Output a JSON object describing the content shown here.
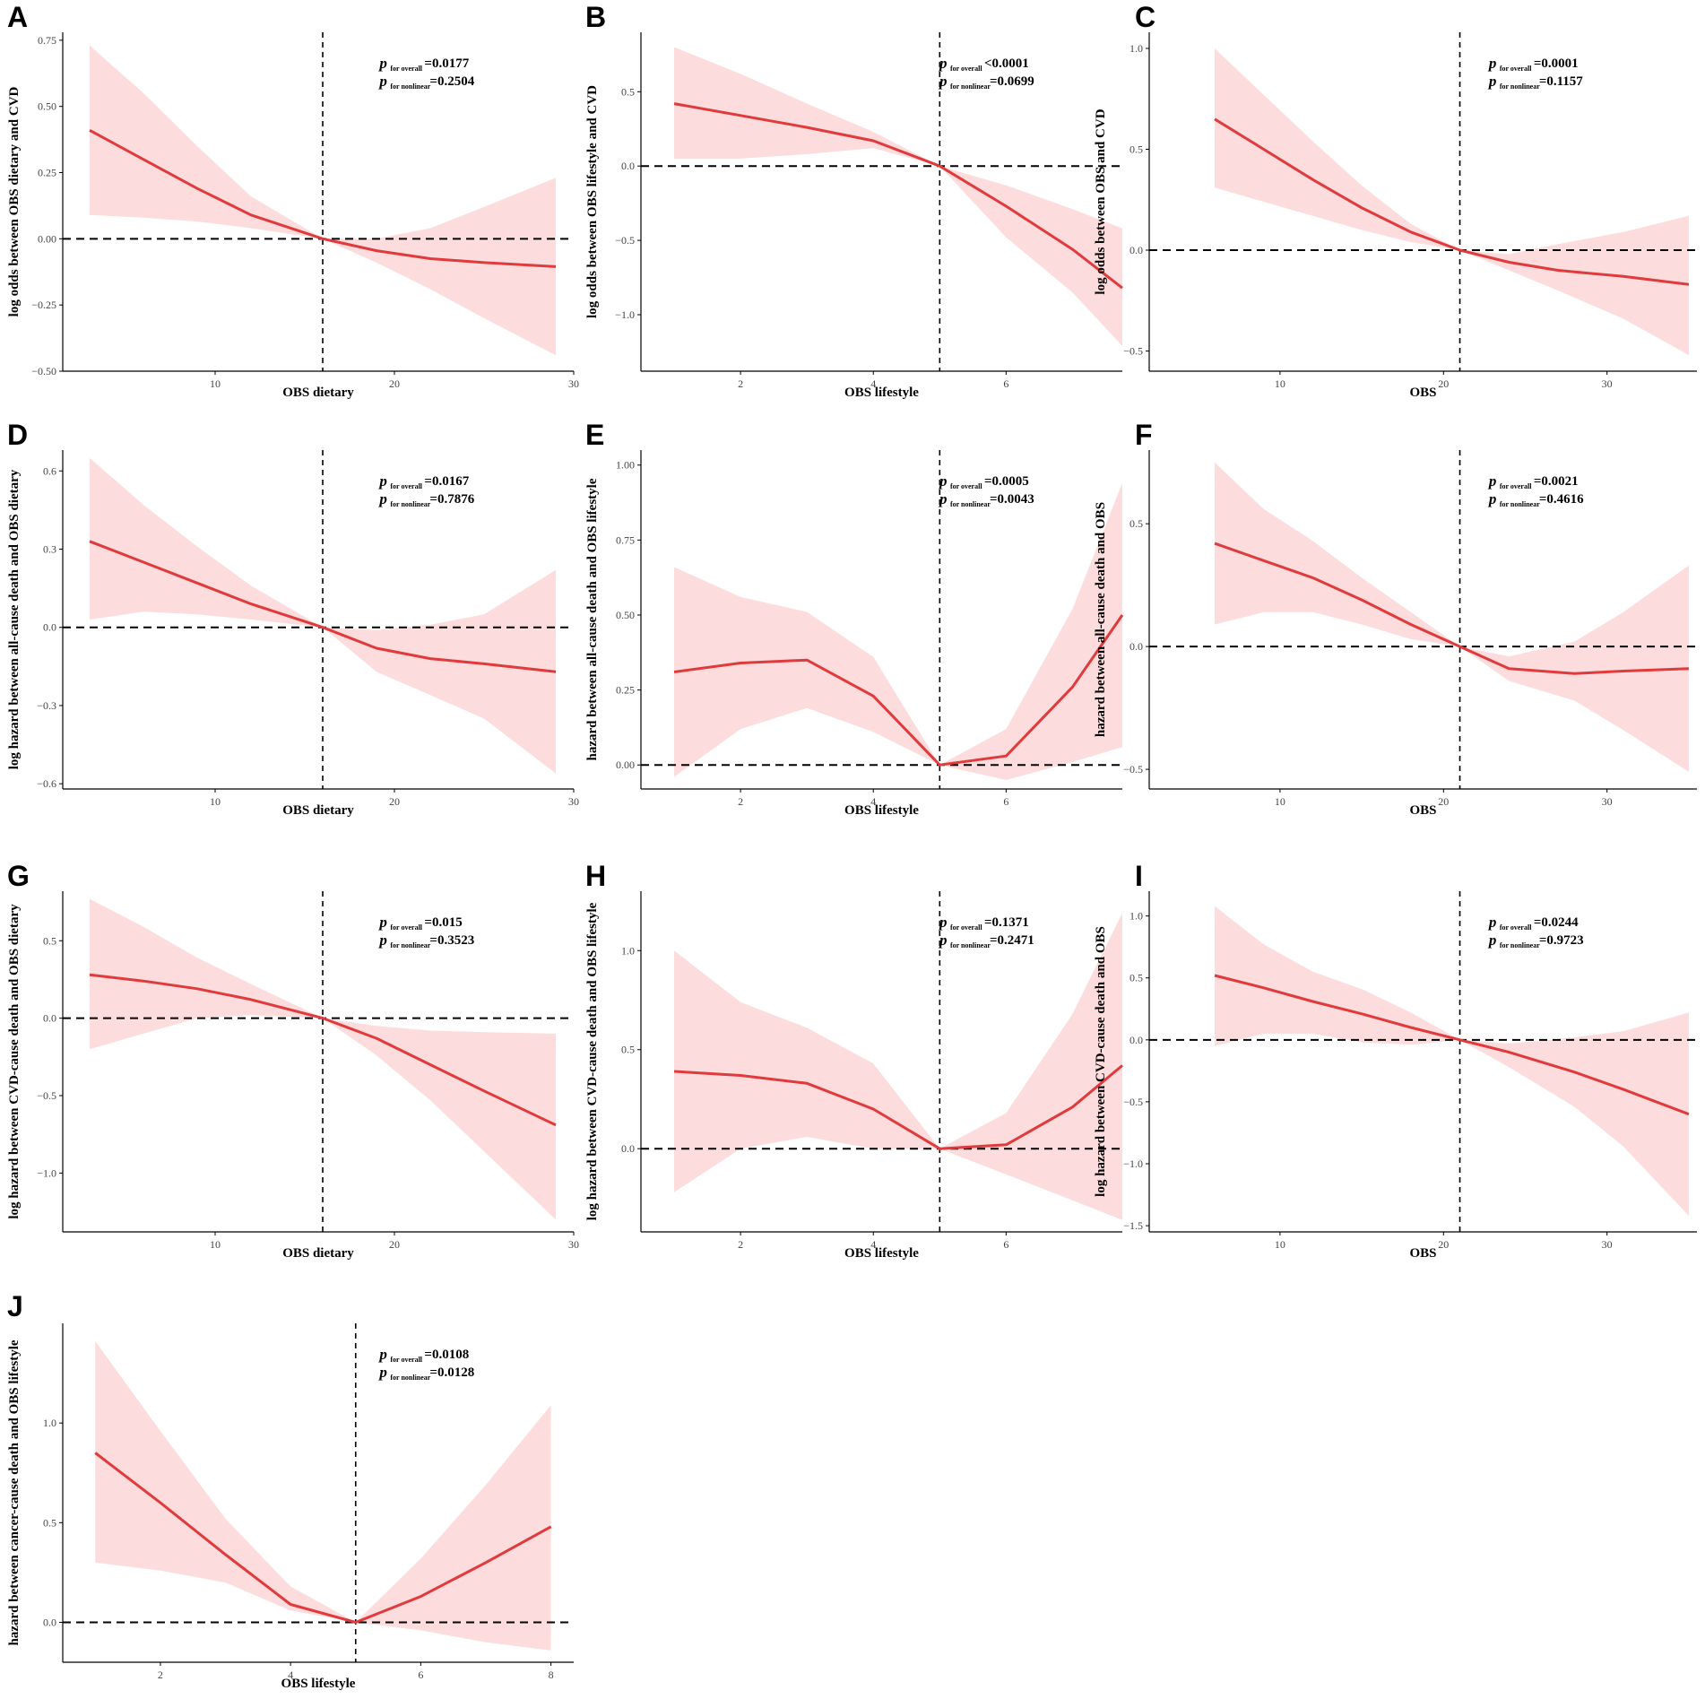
{
  "chart_data": [
    {
      "type": "line",
      "panel": "A",
      "xlabel": "OBS dietary",
      "ylabel": "log odds between OBS dietary and CVD",
      "xlim": [
        1.5,
        30
      ],
      "ylim": [
        -0.5,
        0.78
      ],
      "xticks": [
        10,
        20,
        30
      ],
      "yticks": [
        -0.5,
        -0.25,
        0.0,
        0.25,
        0.5,
        0.75
      ],
      "ytick_labels": [
        "−0.50",
        "−0.25",
        "0.00",
        "0.25",
        "0.50",
        "0.75"
      ],
      "ref_x": 16,
      "ref_y": 0,
      "x": [
        3,
        6,
        9,
        12,
        16,
        19,
        22,
        25,
        29
      ],
      "y": [
        0.41,
        0.3,
        0.19,
        0.09,
        0.0,
        -0.045,
        -0.075,
        -0.09,
        -0.105
      ],
      "ci_low": [
        0.09,
        0.08,
        0.065,
        0.04,
        0.0,
        -0.09,
        -0.19,
        -0.3,
        -0.44
      ],
      "ci_high": [
        0.73,
        0.55,
        0.35,
        0.16,
        0.0,
        0.0,
        0.04,
        0.12,
        0.23
      ],
      "p_overall_label": "for overall",
      "p_overall": "=0.0177",
      "p_nonlinear_label": "for nonlinear",
      "p_nonlinear": "=0.2504"
    },
    {
      "type": "line",
      "panel": "B",
      "xlabel": "OBS lifestyle",
      "ylabel": "log odds between OBS lifestyle and CVD",
      "xlim": [
        0.5,
        7.75
      ],
      "ylim": [
        -1.38,
        0.9
      ],
      "xticks": [
        2,
        4,
        6
      ],
      "yticks": [
        -1.0,
        -0.5,
        0.0,
        0.5
      ],
      "ytick_labels": [
        "−1.0",
        "−0.5",
        "0.0",
        "0.5"
      ],
      "ref_x": 5,
      "ref_y": 0,
      "x": [
        1,
        2,
        3,
        4,
        5,
        6,
        7,
        7.75
      ],
      "y": [
        0.42,
        0.34,
        0.26,
        0.17,
        0.0,
        -0.27,
        -0.56,
        -0.82
      ],
      "ci_low": [
        0.05,
        0.05,
        0.08,
        0.12,
        0.0,
        -0.48,
        -0.85,
        -1.21
      ],
      "ci_high": [
        0.8,
        0.62,
        0.42,
        0.23,
        0.0,
        -0.13,
        -0.29,
        -0.42
      ],
      "p_overall_label": "for overall",
      "p_overall": "<0.0001",
      "p_nonlinear_label": "for nonlinear",
      "p_nonlinear": "=0.0699"
    },
    {
      "type": "line",
      "panel": "C",
      "xlabel": "OBS",
      "ylabel": "log odds between OBS and CVD",
      "xlim": [
        2,
        35.5
      ],
      "ylim": [
        -0.6,
        1.08
      ],
      "xticks": [
        10,
        20,
        30
      ],
      "yticks": [
        -0.5,
        0.0,
        0.5,
        1.0
      ],
      "ytick_labels": [
        "−0.5",
        "0.0",
        "0.5",
        "1.0"
      ],
      "ref_x": 21,
      "ref_y": 0,
      "x": [
        6,
        9,
        12,
        15,
        18,
        21,
        24,
        27,
        31,
        35
      ],
      "y": [
        0.65,
        0.5,
        0.35,
        0.21,
        0.09,
        0.0,
        -0.06,
        -0.1,
        -0.13,
        -0.17
      ],
      "ci_low": [
        0.31,
        0.24,
        0.17,
        0.1,
        0.04,
        0.0,
        -0.1,
        -0.2,
        -0.34,
        -0.52
      ],
      "ci_high": [
        1.0,
        0.77,
        0.54,
        0.32,
        0.13,
        0.0,
        -0.02,
        0.03,
        0.09,
        0.17
      ],
      "p_overall_label": "for overall",
      "p_overall": "=0.0001",
      "p_nonlinear_label": "for nonlinear",
      "p_nonlinear": "=0.1157"
    },
    {
      "type": "line",
      "panel": "D",
      "xlabel": "OBS dietary",
      "ylabel": "log hazard between all-cause death and OBS dietary",
      "xlim": [
        1.5,
        30
      ],
      "ylim": [
        -0.62,
        0.68
      ],
      "xticks": [
        10,
        20,
        30
      ],
      "yticks": [
        -0.6,
        -0.3,
        0.0,
        0.3,
        0.6
      ],
      "ytick_labels": [
        "−0.6",
        "−0.3",
        "0.0",
        "0.3",
        "0.6"
      ],
      "ref_x": 16,
      "ref_y": 0,
      "x": [
        3,
        6,
        9,
        12,
        16,
        19,
        22,
        25,
        29
      ],
      "y": [
        0.33,
        0.25,
        0.17,
        0.09,
        0.0,
        -0.08,
        -0.12,
        -0.14,
        -0.17
      ],
      "ci_low": [
        0.03,
        0.06,
        0.05,
        0.03,
        0.0,
        -0.17,
        -0.26,
        -0.35,
        -0.56
      ],
      "ci_high": [
        0.65,
        0.47,
        0.31,
        0.16,
        0.0,
        -0.01,
        0.01,
        0.05,
        0.22
      ],
      "p_overall_label": "for overall",
      "p_overall": "=0.0167",
      "p_nonlinear_label": "for nonlinear",
      "p_nonlinear": "=0.7876"
    },
    {
      "type": "line",
      "panel": "E",
      "xlabel": "OBS lifestyle",
      "ylabel": "hazard between all-cause death and OBS lifestyle",
      "xlim": [
        0.5,
        7.75
      ],
      "ylim": [
        -0.08,
        1.05
      ],
      "xticks": [
        2,
        4,
        6
      ],
      "yticks": [
        0.0,
        0.25,
        0.5,
        0.75,
        1.0
      ],
      "ytick_labels": [
        "0.00",
        "0.25",
        "0.50",
        "0.75",
        "1.00"
      ],
      "ref_x": 5,
      "ref_y": 0,
      "x": [
        1,
        2,
        3,
        4,
        5,
        6,
        7,
        7.75
      ],
      "y": [
        0.31,
        0.34,
        0.35,
        0.23,
        0.0,
        0.03,
        0.26,
        0.5
      ],
      "ci_low": [
        -0.04,
        0.12,
        0.19,
        0.11,
        0.0,
        -0.05,
        0.01,
        0.06
      ],
      "ci_high": [
        0.66,
        0.56,
        0.51,
        0.36,
        0.0,
        0.12,
        0.52,
        0.94
      ],
      "p_overall_label": "for overall",
      "p_overall": "=0.0005",
      "p_nonlinear_label": "for nonlinear",
      "p_nonlinear": "=0.0043"
    },
    {
      "type": "line",
      "panel": "F",
      "xlabel": "OBS",
      "ylabel": "hazard between all-cause death and OBS",
      "xlim": [
        2,
        35.5
      ],
      "ylim": [
        -0.58,
        0.8
      ],
      "xticks": [
        10,
        20,
        30
      ],
      "yticks": [
        -0.5,
        0.0,
        0.5
      ],
      "ytick_labels": [
        "−0.5",
        "0.0",
        "0.5"
      ],
      "ref_x": 21,
      "ref_y": 0,
      "x": [
        6,
        9,
        12,
        15,
        18,
        21,
        24,
        28,
        31,
        35
      ],
      "y": [
        0.42,
        0.35,
        0.28,
        0.19,
        0.09,
        0.0,
        -0.09,
        -0.11,
        -0.1,
        -0.09
      ],
      "ci_low": [
        0.09,
        0.14,
        0.14,
        0.09,
        0.03,
        0.0,
        -0.14,
        -0.22,
        -0.34,
        -0.51
      ],
      "ci_high": [
        0.75,
        0.56,
        0.43,
        0.28,
        0.14,
        0.0,
        -0.04,
        0.02,
        0.14,
        0.33
      ],
      "p_overall_label": "for overall",
      "p_overall": "=0.0021",
      "p_nonlinear_label": "for nonlinear",
      "p_nonlinear": "=0.4616"
    },
    {
      "type": "line",
      "panel": "G",
      "xlabel": "OBS dietary",
      "ylabel": "log hazard between CVD-cause death and OBS dietary",
      "xlim": [
        1.5,
        30
      ],
      "ylim": [
        -1.38,
        0.82
      ],
      "xticks": [
        10,
        20,
        30
      ],
      "yticks": [
        -1.0,
        -0.5,
        0.0,
        0.5
      ],
      "ytick_labels": [
        "−1.0",
        "−0.5",
        "0.0",
        "0.5"
      ],
      "ref_x": 16,
      "ref_y": 0,
      "x": [
        3,
        6,
        9,
        12,
        16,
        19,
        22,
        25,
        29
      ],
      "y": [
        0.28,
        0.24,
        0.19,
        0.12,
        0.0,
        -0.13,
        -0.3,
        -0.47,
        -0.69
      ],
      "ci_low": [
        -0.2,
        -0.1,
        0.0,
        0.02,
        0.0,
        -0.24,
        -0.53,
        -0.86,
        -1.3
      ],
      "ci_high": [
        0.77,
        0.59,
        0.39,
        0.22,
        0.0,
        -0.05,
        -0.08,
        -0.09,
        -0.1
      ],
      "p_overall_label": "for overall",
      "p_overall": "=0.015",
      "p_nonlinear_label": "for nonlinear",
      "p_nonlinear": "=0.3523"
    },
    {
      "type": "line",
      "panel": "H",
      "xlabel": "OBS lifestyle",
      "ylabel": "log hazard between CVD-cause death and OBS lifestyle",
      "xlim": [
        0.5,
        7.75
      ],
      "ylim": [
        -0.42,
        1.3
      ],
      "xticks": [
        2,
        4,
        6
      ],
      "yticks": [
        0.0,
        0.5,
        1.0
      ],
      "ytick_labels": [
        "0.0",
        "0.5",
        "1.0"
      ],
      "ref_x": 5,
      "ref_y": 0,
      "x": [
        1,
        2,
        3,
        4,
        5,
        6,
        7,
        7.75
      ],
      "y": [
        0.39,
        0.37,
        0.33,
        0.2,
        0.0,
        0.02,
        0.21,
        0.42
      ],
      "ci_low": [
        -0.22,
        0.0,
        0.06,
        0.0,
        0.0,
        -0.13,
        -0.26,
        -0.36
      ],
      "ci_high": [
        1.0,
        0.74,
        0.61,
        0.43,
        0.0,
        0.18,
        0.68,
        1.19
      ],
      "p_overall_label": "for overall",
      "p_overall": "=0.1371",
      "p_nonlinear_label": "for nonlinear",
      "p_nonlinear": "=0.2471"
    },
    {
      "type": "line",
      "panel": "I",
      "xlabel": "OBS",
      "ylabel": "log hazard between CVD-cause death and OBS",
      "xlim": [
        2,
        35.5
      ],
      "ylim": [
        -1.55,
        1.2
      ],
      "xticks": [
        10,
        20,
        30
      ],
      "yticks": [
        -1.5,
        -1.0,
        -0.5,
        0.0,
        0.5,
        1.0
      ],
      "ytick_labels": [
        "−1.5",
        "−1.0",
        "−0.5",
        "0.0",
        "0.5",
        "1.0"
      ],
      "ref_x": 21,
      "ref_y": 0,
      "x": [
        6,
        9,
        12,
        15,
        18,
        21,
        24,
        28,
        31,
        35
      ],
      "y": [
        0.52,
        0.42,
        0.31,
        0.21,
        0.1,
        0.0,
        -0.1,
        -0.26,
        -0.4,
        -0.6
      ],
      "ci_low": [
        -0.05,
        0.05,
        0.05,
        -0.02,
        -0.04,
        0.0,
        -0.22,
        -0.54,
        -0.86,
        -1.42
      ],
      "ci_high": [
        1.08,
        0.77,
        0.55,
        0.41,
        0.22,
        0.0,
        -0.03,
        0.02,
        0.07,
        0.22
      ],
      "p_overall_label": "for overall",
      "p_overall": "=0.0244",
      "p_nonlinear_label": "for nonlinear",
      "p_nonlinear": "=0.9723"
    },
    {
      "type": "line",
      "panel": "J",
      "xlabel": "OBS lifestyle",
      "ylabel": "hazard between cancer-cause death and OBS lifestyle",
      "xlim": [
        0.5,
        8.35
      ],
      "ylim": [
        -0.2,
        1.5
      ],
      "xticks": [
        2,
        4,
        6,
        8
      ],
      "yticks": [
        0.0,
        0.5,
        1.0
      ],
      "ytick_labels": [
        "0.0",
        "0.5",
        "1.0"
      ],
      "ref_x": 5,
      "ref_y": 0,
      "x": [
        1,
        2,
        3,
        4,
        5,
        6,
        7,
        8
      ],
      "y": [
        0.85,
        0.6,
        0.34,
        0.09,
        0.0,
        0.13,
        0.3,
        0.48
      ],
      "ci_low": [
        0.3,
        0.26,
        0.2,
        0.06,
        0.0,
        -0.04,
        -0.1,
        -0.14
      ],
      "ci_high": [
        1.41,
        0.96,
        0.52,
        0.18,
        0.0,
        0.32,
        0.69,
        1.09
      ],
      "p_overall_label": "for overall",
      "p_overall": "=0.0108",
      "p_nonlinear_label": "for nonlinear",
      "p_nonlinear": "=0.0128"
    }
  ],
  "colors": {
    "line": "#e03a3c",
    "band": "#fcdcdc",
    "axis": "#000000",
    "ref": "#000000"
  }
}
